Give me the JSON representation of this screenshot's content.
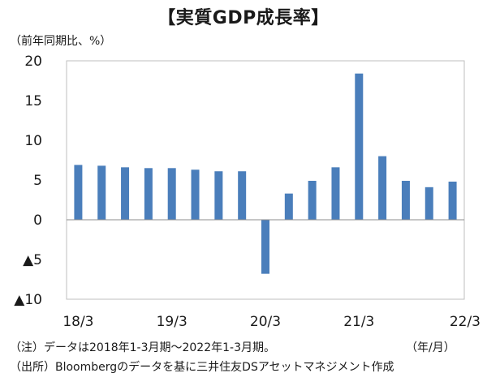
{
  "chart_data": {
    "type": "bar",
    "title": "【実質GDP成長率】",
    "ylabel": "（前年同期比、%）",
    "xlabel": "（年/月）",
    "ylim": [
      -10,
      20
    ],
    "yticks": [
      20,
      15,
      10,
      5,
      0,
      -5,
      -10
    ],
    "ytick_labels": [
      "20",
      "15",
      "10",
      "5",
      "0",
      "▲5",
      "▲10"
    ],
    "xtick_labels": [
      "18/3",
      "19/3",
      "20/3",
      "21/3",
      "22/3"
    ],
    "xtick_indices": [
      0,
      4,
      8,
      12,
      16
    ],
    "bar_color": "#4a7ebb",
    "categories": [
      "18/3",
      "18/6",
      "18/9",
      "18/12",
      "19/3",
      "19/6",
      "19/9",
      "19/12",
      "20/3",
      "20/6",
      "20/9",
      "20/12",
      "21/3",
      "21/6",
      "21/9",
      "21/12",
      "22/3"
    ],
    "values": [
      6.9,
      6.8,
      6.6,
      6.5,
      6.5,
      6.3,
      6.1,
      6.1,
      -6.8,
      3.3,
      4.9,
      6.6,
      18.4,
      8.0,
      4.9,
      4.1,
      4.8
    ]
  },
  "notes": {
    "line1": "（注）データは2018年1-3月期～2022年1-3月期。",
    "line2": "（出所）Bloombergのデータを基に三井住友DSアセットマネジメント作成"
  }
}
